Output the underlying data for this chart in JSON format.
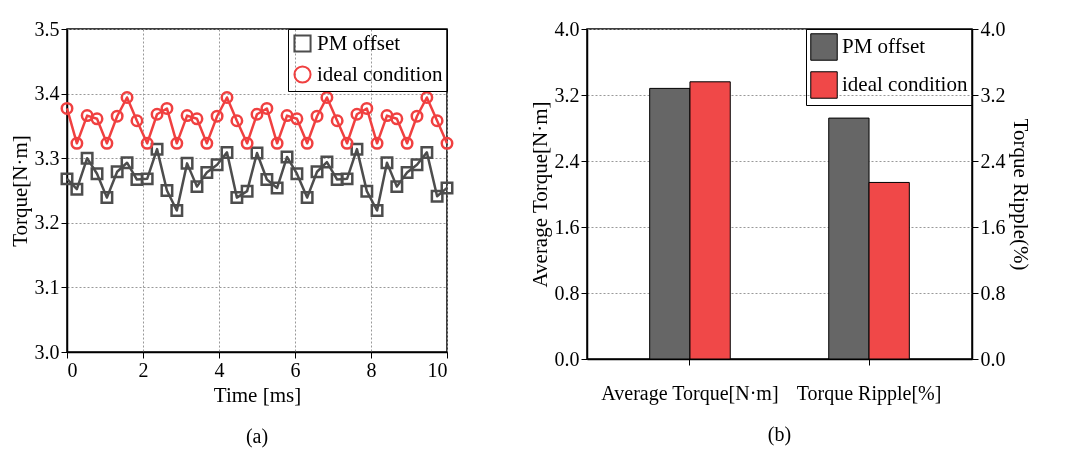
{
  "chart_data": [
    {
      "type": "line",
      "title": "(a)",
      "xlabel": "Time [ms]",
      "ylabel": "Torque[N·m]",
      "xlim": [
        0,
        10
      ],
      "ylim": [
        3.0,
        3.5
      ],
      "xticks": [
        0,
        2,
        4,
        6,
        8,
        10
      ],
      "yticks": [
        {
          "value": 3.0,
          "label": "3.0"
        },
        3.1,
        3.2,
        3.3,
        3.4,
        3.5
      ],
      "grid": true,
      "legend": "top right",
      "line_style": "solid",
      "x": [
        0,
        0.26,
        0.53,
        0.79,
        1.05,
        1.32,
        1.58,
        1.84,
        2.11,
        2.37,
        2.63,
        2.89,
        3.16,
        3.42,
        3.68,
        3.95,
        4.21,
        4.47,
        4.74,
        5.0,
        5.26,
        5.53,
        5.79,
        6.05,
        6.32,
        6.58,
        6.84,
        7.11,
        7.37,
        7.63,
        7.89,
        8.16,
        8.42,
        8.68,
        8.95,
        9.21,
        9.47,
        9.74,
        10
      ],
      "series": [
        {
          "name": "PM offset",
          "color": "#4d4d4d",
          "marker": "square",
          "values": [
            3.268,
            3.252,
            3.3,
            3.276,
            3.239,
            3.279,
            3.293,
            3.267,
            3.268,
            3.314,
            3.25,
            3.219,
            3.292,
            3.256,
            3.278,
            3.29,
            3.309,
            3.239,
            3.249,
            3.308,
            3.267,
            3.254,
            3.302,
            3.276,
            3.239,
            3.279,
            3.294,
            3.267,
            3.268,
            3.314,
            3.249,
            3.219,
            3.293,
            3.256,
            3.278,
            3.29,
            3.309,
            3.241,
            3.254
          ]
        },
        {
          "name": "ideal condition",
          "color": "#f04040",
          "marker": "circle",
          "values": [
            3.377,
            3.323,
            3.366,
            3.361,
            3.323,
            3.365,
            3.394,
            3.358,
            3.323,
            3.368,
            3.377,
            3.323,
            3.366,
            3.361,
            3.323,
            3.365,
            3.394,
            3.358,
            3.323,
            3.368,
            3.377,
            3.323,
            3.366,
            3.361,
            3.323,
            3.365,
            3.394,
            3.358,
            3.323,
            3.368,
            3.377,
            3.323,
            3.366,
            3.361,
            3.323,
            3.365,
            3.394,
            3.358,
            3.323
          ]
        }
      ]
    },
    {
      "type": "bar",
      "title": "(b)",
      "ylabel": "Average Torque[N·m]",
      "y2label": "Torque Ripple(%)",
      "categories": [
        "Average Torque[N·m]",
        "Torque Ripple[%]"
      ],
      "ylim": [
        0,
        4.0
      ],
      "yticks": [
        {
          "value": 0,
          "label": "0.0"
        },
        0.8,
        1.6,
        2.4,
        3.2,
        {
          "value": 4,
          "label": "4.0"
        }
      ],
      "y2lim": [
        0,
        4.0
      ],
      "y2ticks": [
        {
          "value": 0,
          "label": "0.0"
        },
        0.8,
        1.6,
        2.4,
        3.2,
        {
          "value": 4,
          "label": "4.0"
        }
      ],
      "grid": "y",
      "legend": "top right",
      "series": [
        {
          "name": "PM offset",
          "color": "#666666",
          "values": [
            3.28,
            2.92
          ]
        },
        {
          "name": "ideal condition",
          "color": "#f04848",
          "values": [
            3.36,
            2.14
          ]
        }
      ]
    }
  ]
}
